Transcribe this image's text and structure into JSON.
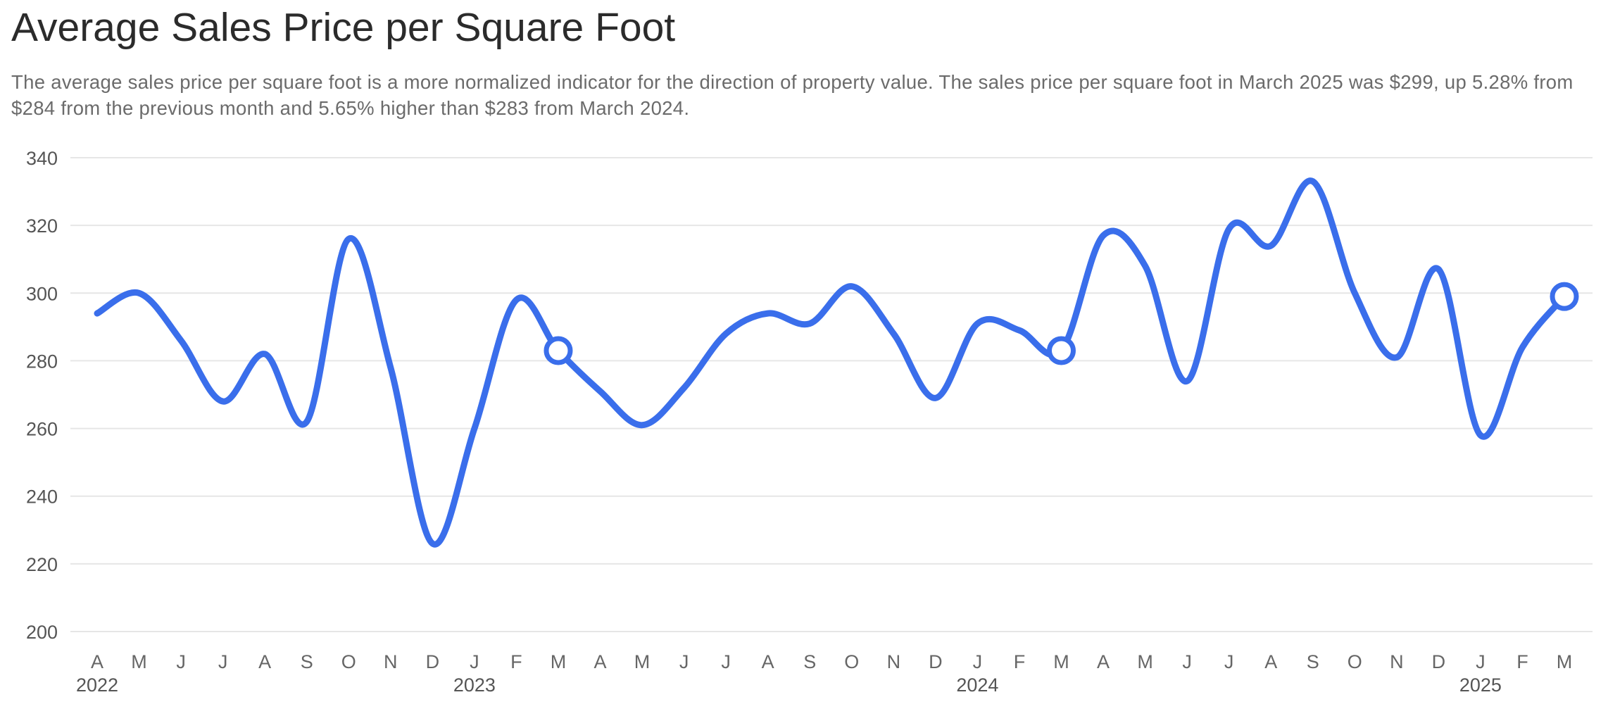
{
  "title": "Average Sales Price per Square Foot",
  "description": "The average sales price per square foot is a more normalized indicator for the direction of property value. The sales price per square foot in March 2025 was $299, up 5.28% from $284 from the previous month and 5.65% higher than $283 from March 2024.",
  "colors": {
    "line": "#3a6eeb",
    "grid": "#e6e6e6",
    "marker_fill": "#ffffff"
  },
  "chart_data": {
    "type": "line",
    "x": [
      "2022-04",
      "2022-05",
      "2022-06",
      "2022-07",
      "2022-08",
      "2022-09",
      "2022-10",
      "2022-11",
      "2022-12",
      "2023-01",
      "2023-02",
      "2023-03",
      "2023-04",
      "2023-05",
      "2023-06",
      "2023-07",
      "2023-08",
      "2023-09",
      "2023-10",
      "2023-11",
      "2023-12",
      "2024-01",
      "2024-02",
      "2024-03",
      "2024-04",
      "2024-05",
      "2024-06",
      "2024-07",
      "2024-08",
      "2024-09",
      "2024-10",
      "2024-11",
      "2024-12",
      "2025-01",
      "2025-02",
      "2025-03"
    ],
    "tick_labels": [
      "A",
      "M",
      "J",
      "J",
      "A",
      "S",
      "O",
      "N",
      "D",
      "J",
      "F",
      "M",
      "A",
      "M",
      "J",
      "J",
      "A",
      "S",
      "O",
      "N",
      "D",
      "J",
      "F",
      "M",
      "A",
      "M",
      "J",
      "J",
      "A",
      "S",
      "O",
      "N",
      "D",
      "J",
      "F",
      "M"
    ],
    "year_labels": [
      {
        "label": "2022",
        "index": 0
      },
      {
        "label": "2023",
        "index": 9
      },
      {
        "label": "2024",
        "index": 21
      },
      {
        "label": "2025",
        "index": 33
      }
    ],
    "series": [
      {
        "values": [
          294,
          300,
          286,
          268,
          282,
          262,
          316,
          278,
          226,
          260,
          298,
          283,
          271,
          261,
          272,
          288,
          294,
          291,
          302,
          288,
          269,
          291,
          289,
          283,
          317,
          308,
          274,
          319,
          314,
          333,
          300,
          281,
          307,
          258,
          284,
          299
        ]
      }
    ],
    "highlighted_indices": [
      11,
      23,
      35
    ],
    "ylim": [
      200,
      340
    ],
    "yticks": [
      200,
      220,
      240,
      260,
      280,
      300,
      320,
      340
    ],
    "grid": true,
    "xlabel": "",
    "ylabel": ""
  }
}
